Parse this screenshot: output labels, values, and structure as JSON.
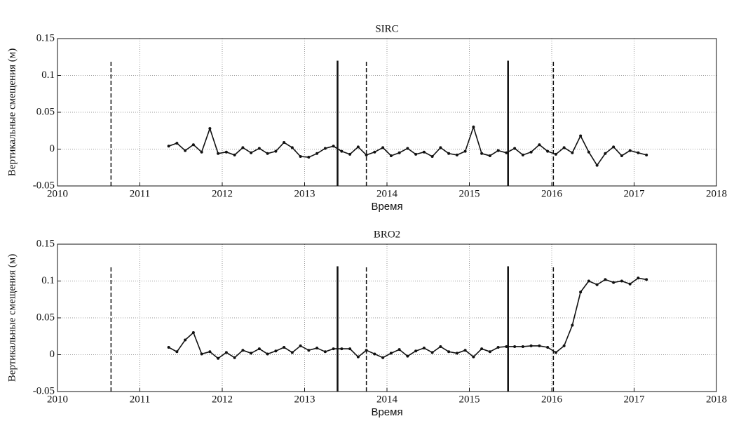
{
  "chart_data": [
    {
      "type": "line",
      "title": "SIRC",
      "xlabel": "Время",
      "ylabel": "Вертикальные смещения (м)",
      "grid": true,
      "color": "#111111",
      "xlim": [
        2010,
        2018
      ],
      "xticks": [
        2010,
        2011,
        2012,
        2013,
        2014,
        2015,
        2016,
        2017,
        2018
      ],
      "ylim": [
        -0.05,
        0.15
      ],
      "yticks": [
        -0.05,
        0,
        0.05,
        0.1,
        0.15
      ],
      "events": [
        {
          "x": 2010.65,
          "y": [
            -0.05,
            0.12
          ],
          "style": "dashed"
        },
        {
          "x": 2013.4,
          "y": [
            -0.05,
            0.12
          ],
          "style": "solid"
        },
        {
          "x": 2013.75,
          "y": [
            -0.05,
            0.12
          ],
          "style": "dashed"
        },
        {
          "x": 2015.47,
          "y": [
            -0.05,
            0.12
          ],
          "style": "solid"
        },
        {
          "x": 2016.02,
          "y": [
            -0.05,
            0.12
          ],
          "style": "dashed"
        }
      ],
      "x": [
        2011.35,
        2011.45,
        2011.55,
        2011.65,
        2011.75,
        2011.85,
        2011.95,
        2012.05,
        2012.15,
        2012.25,
        2012.35,
        2012.45,
        2012.55,
        2012.65,
        2012.75,
        2012.85,
        2012.95,
        2013.05,
        2013.15,
        2013.25,
        2013.35,
        2013.45,
        2013.55,
        2013.65,
        2013.75,
        2013.85,
        2013.95,
        2014.05,
        2014.15,
        2014.25,
        2014.35,
        2014.45,
        2014.55,
        2014.65,
        2014.75,
        2014.85,
        2014.95,
        2015.05,
        2015.15,
        2015.25,
        2015.35,
        2015.45,
        2015.55,
        2015.65,
        2015.75,
        2015.85,
        2015.95,
        2016.05,
        2016.15,
        2016.25,
        2016.35,
        2016.45,
        2016.55,
        2016.65,
        2016.75,
        2016.85,
        2016.95,
        2017.05,
        2017.15
      ],
      "values": [
        0.004,
        0.008,
        -0.002,
        0.006,
        -0.004,
        0.028,
        -0.006,
        -0.004,
        -0.008,
        0.002,
        -0.005,
        0.001,
        -0.006,
        -0.003,
        0.009,
        0.002,
        -0.01,
        -0.011,
        -0.006,
        0.001,
        0.004,
        -0.003,
        -0.007,
        0.003,
        -0.008,
        -0.004,
        0.002,
        -0.009,
        -0.005,
        0.001,
        -0.007,
        -0.004,
        -0.01,
        0.002,
        -0.006,
        -0.008,
        -0.003,
        0.03,
        -0.006,
        -0.009,
        -0.002,
        -0.005,
        0.001,
        -0.008,
        -0.004,
        0.006,
        -0.003,
        -0.007,
        0.002,
        -0.005,
        0.018,
        -0.004,
        -0.022,
        -0.006,
        0.003,
        -0.009,
        -0.002,
        -0.005,
        -0.008
      ]
    },
    {
      "type": "line",
      "title": "BRO2",
      "xlabel": "Время",
      "ylabel": "Вертикальные смещения (м)",
      "grid": true,
      "color": "#111111",
      "xlim": [
        2010,
        2018
      ],
      "xticks": [
        2010,
        2011,
        2012,
        2013,
        2014,
        2015,
        2016,
        2017,
        2018
      ],
      "ylim": [
        -0.05,
        0.15
      ],
      "yticks": [
        -0.05,
        0,
        0.05,
        0.1,
        0.15
      ],
      "events": [
        {
          "x": 2010.65,
          "y": [
            -0.05,
            0.12
          ],
          "style": "dashed"
        },
        {
          "x": 2013.4,
          "y": [
            -0.05,
            0.12
          ],
          "style": "solid"
        },
        {
          "x": 2013.75,
          "y": [
            -0.05,
            0.12
          ],
          "style": "dashed"
        },
        {
          "x": 2015.47,
          "y": [
            -0.05,
            0.12
          ],
          "style": "solid"
        },
        {
          "x": 2016.02,
          "y": [
            -0.05,
            0.12
          ],
          "style": "dashed"
        }
      ],
      "x": [
        2011.35,
        2011.45,
        2011.55,
        2011.65,
        2011.75,
        2011.85,
        2011.95,
        2012.05,
        2012.15,
        2012.25,
        2012.35,
        2012.45,
        2012.55,
        2012.65,
        2012.75,
        2012.85,
        2012.95,
        2013.05,
        2013.15,
        2013.25,
        2013.35,
        2013.45,
        2013.55,
        2013.65,
        2013.75,
        2013.85,
        2013.95,
        2014.05,
        2014.15,
        2014.25,
        2014.35,
        2014.45,
        2014.55,
        2014.65,
        2014.75,
        2014.85,
        2014.95,
        2015.05,
        2015.15,
        2015.25,
        2015.35,
        2015.45,
        2015.55,
        2015.65,
        2015.75,
        2015.85,
        2015.95,
        2016.05,
        2016.15,
        2016.25,
        2016.35,
        2016.45,
        2016.55,
        2016.65,
        2016.75,
        2016.85,
        2016.95,
        2017.05,
        2017.15
      ],
      "values": [
        0.01,
        0.004,
        0.02,
        0.03,
        0.001,
        0.004,
        -0.005,
        0.003,
        -0.004,
        0.006,
        0.002,
        0.008,
        0.001,
        0.005,
        0.01,
        0.003,
        0.012,
        0.006,
        0.009,
        0.004,
        0.008,
        0.008,
        0.008,
        -0.003,
        0.006,
        0.001,
        -0.004,
        0.002,
        0.007,
        -0.002,
        0.005,
        0.009,
        0.003,
        0.011,
        0.004,
        0.002,
        0.006,
        -0.003,
        0.008,
        0.004,
        0.01,
        0.011,
        0.011,
        0.011,
        0.012,
        0.012,
        0.01,
        0.003,
        0.012,
        0.04,
        0.085,
        0.1,
        0.095,
        0.102,
        0.098,
        0.1,
        0.096,
        0.104,
        0.102
      ]
    }
  ]
}
